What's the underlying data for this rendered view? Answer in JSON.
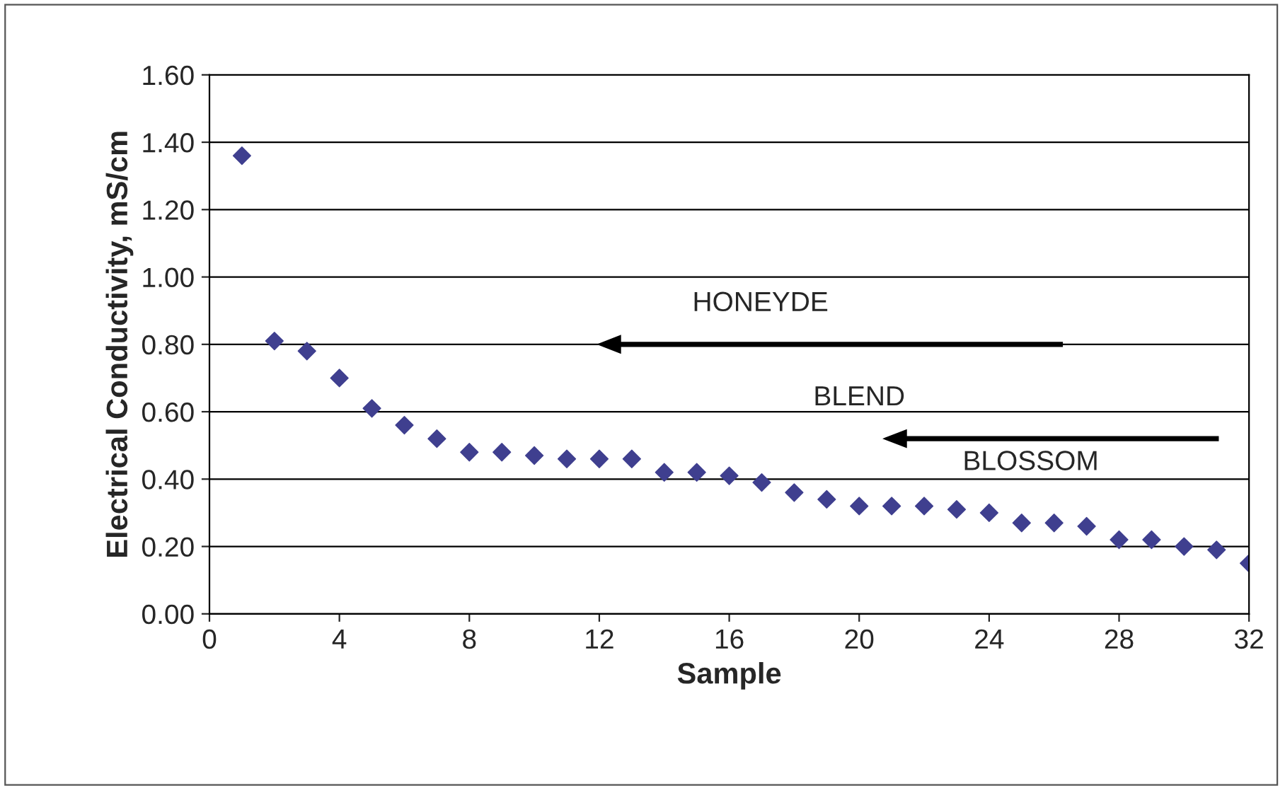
{
  "chart_data": {
    "type": "scatter",
    "xlabel": "Sample",
    "ylabel": "Electrical Conductivity, mS/cm",
    "annotations": [
      "HONEYDE",
      "BLEND",
      "BLOSSOM"
    ],
    "series": [
      {
        "color": "#3f3f8f",
        "x": [
          1,
          2,
          3,
          4,
          5,
          6,
          7,
          8,
          9,
          10,
          11,
          12,
          13,
          14,
          15,
          16,
          17,
          18,
          19,
          20,
          21,
          22,
          23,
          24,
          25,
          26,
          27,
          28,
          29,
          30,
          31,
          32
        ],
        "values": [
          1.36,
          0.81,
          0.78,
          0.7,
          0.61,
          0.56,
          0.52,
          0.48,
          0.48,
          0.47,
          0.46,
          0.46,
          0.46,
          0.42,
          0.42,
          0.41,
          0.39,
          0.36,
          0.34,
          0.32,
          0.32,
          0.32,
          0.31,
          0.3,
          0.27,
          0.27,
          0.26,
          0.22,
          0.22,
          0.2,
          0.19,
          0.15
        ]
      }
    ],
    "xlim": [
      0,
      32
    ],
    "xticks": [
      0,
      4,
      8,
      12,
      16,
      20,
      24,
      28,
      32
    ],
    "ylim": [
      0,
      1.6
    ],
    "yticks": [
      {
        "value": 0,
        "label": "0.00"
      },
      {
        "value": 0.2,
        "label": "0.20"
      },
      {
        "value": 0.4,
        "label": "0.40"
      },
      {
        "value": 0.6,
        "label": "0.60"
      },
      {
        "value": 0.8,
        "label": "0.80"
      },
      {
        "value": 1.0,
        "label": "1.00"
      },
      {
        "value": 1.2,
        "label": "1.20"
      },
      {
        "value": 1.4,
        "label": "1.40"
      },
      {
        "value": 1.6,
        "label": "1.60"
      }
    ],
    "grid": "y",
    "marker": "diamond",
    "legend": false
  }
}
